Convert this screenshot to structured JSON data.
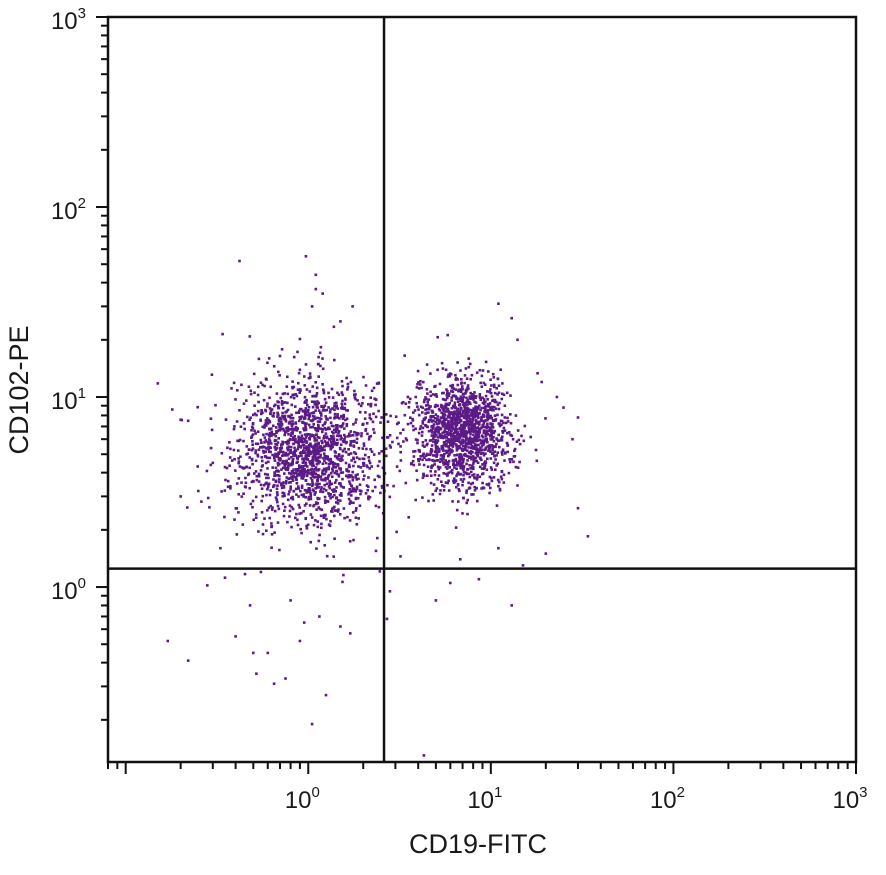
{
  "chart_data": {
    "type": "scatter",
    "xlabel": "CD19-FITC",
    "ylabel": "CD102-PE",
    "x_scale": "log",
    "y_scale": "log",
    "xlim": [
      0.08,
      1000
    ],
    "ylim": [
      0.12,
      1000
    ],
    "x_ticks": [
      {
        "value": 1,
        "base": "10",
        "exp": "0"
      },
      {
        "value": 10,
        "base": "10",
        "exp": "1"
      },
      {
        "value": 100,
        "base": "10",
        "exp": "2"
      },
      {
        "value": 1000,
        "base": "10",
        "exp": "3"
      }
    ],
    "y_ticks": [
      {
        "value": 1,
        "base": "10",
        "exp": "0"
      },
      {
        "value": 10,
        "base": "10",
        "exp": "1"
      },
      {
        "value": 100,
        "base": "10",
        "exp": "2"
      },
      {
        "value": 1000,
        "base": "10",
        "exp": "3"
      }
    ],
    "grid": false,
    "point_color": "#5c1a86",
    "quadrant_gates": {
      "x": 2.6,
      "y": 1.25
    },
    "populations": [
      {
        "center": [
          1.0,
          5.2
        ],
        "count": 1650,
        "spread_log10": [
          0.2,
          0.19
        ]
      },
      {
        "center": [
          7.0,
          6.6
        ],
        "count": 1450,
        "spread_log10": [
          0.13,
          0.15
        ]
      }
    ],
    "points": [
      [
        0.15,
        11.8
      ],
      [
        0.18,
        8.6
      ],
      [
        0.2,
        7.6
      ],
      [
        0.42,
        52
      ],
      [
        0.97,
        55
      ],
      [
        1.1,
        44
      ],
      [
        1.1,
        37
      ],
      [
        1.2,
        35
      ],
      [
        1.05,
        30
      ],
      [
        1.75,
        30
      ],
      [
        1.5,
        25
      ],
      [
        11,
        31
      ],
      [
        13,
        26
      ],
      [
        14,
        20
      ],
      [
        19,
        12
      ],
      [
        23,
        10
      ],
      [
        25,
        8.8
      ],
      [
        30,
        7.8
      ],
      [
        28,
        6
      ],
      [
        30,
        2.6
      ],
      [
        34,
        1.85
      ],
      [
        20,
        1.5
      ],
      [
        15,
        1.3
      ],
      [
        0.17,
        0.52
      ],
      [
        0.22,
        0.41
      ],
      [
        0.4,
        0.55
      ],
      [
        0.5,
        0.45
      ],
      [
        0.52,
        0.35
      ],
      [
        0.65,
        0.31
      ],
      [
        0.75,
        0.33
      ],
      [
        1.25,
        0.27
      ],
      [
        1.05,
        0.19
      ],
      [
        4.3,
        0.13
      ],
      [
        13,
        0.8
      ],
      [
        5,
        0.85
      ],
      [
        6,
        1.05
      ],
      [
        2.7,
        0.68
      ],
      [
        1.7,
        0.57
      ],
      [
        1.5,
        0.62
      ],
      [
        0.95,
        0.65
      ],
      [
        0.28,
        1.02
      ],
      [
        0.35,
        1.12
      ],
      [
        0.45,
        1.17
      ],
      [
        0.55,
        1.2
      ],
      [
        2.35,
        1.55
      ],
      [
        3.2,
        1.45
      ],
      [
        6.8,
        1.4
      ],
      [
        11,
        1.6
      ],
      [
        0.6,
        0.45
      ],
      [
        0.9,
        0.52
      ],
      [
        1.15,
        0.7
      ],
      [
        0.8,
        0.85
      ],
      [
        2.8,
        0.95
      ],
      [
        8.6,
        1.1
      ],
      [
        0.25,
        3.2
      ],
      [
        0.2,
        3.0
      ],
      [
        0.3,
        4.5
      ],
      [
        0.22,
        7.5
      ],
      [
        0.33,
        1.6
      ],
      [
        0.48,
        0.8
      ]
    ]
  }
}
